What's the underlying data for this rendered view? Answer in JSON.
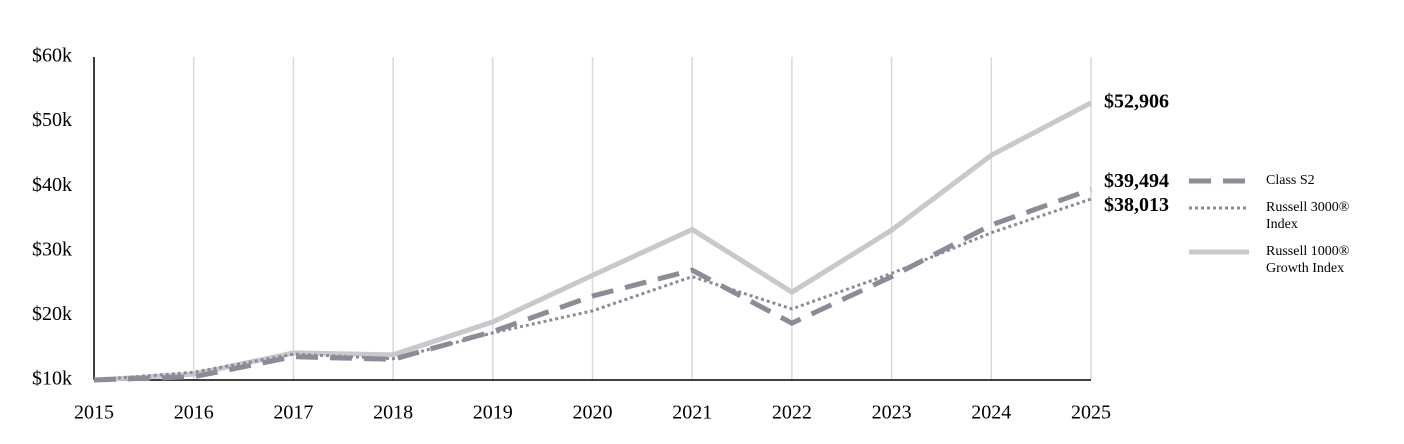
{
  "chart_data": {
    "type": "line",
    "x": [
      2015,
      2016,
      2017,
      2018,
      2019,
      2020,
      2021,
      2022,
      2023,
      2024,
      2025
    ],
    "xlim": [
      2015,
      2025
    ],
    "xticks": [
      2015,
      2016,
      2017,
      2018,
      2019,
      2020,
      2021,
      2022,
      2023,
      2024,
      2025
    ],
    "ylim": [
      10000,
      60000
    ],
    "yticks": [
      {
        "value": 10000,
        "label": "$10k"
      },
      {
        "value": 20000,
        "label": "$20k"
      },
      {
        "value": 30000,
        "label": "$30k"
      },
      {
        "value": 40000,
        "label": "$40k"
      },
      {
        "value": 50000,
        "label": "$50k"
      },
      {
        "value": 60000,
        "label": "$60k"
      }
    ],
    "grid": "x",
    "legend": "right",
    "series": [
      {
        "name": "Class S2",
        "color": "#8e8a98",
        "style": "dashed",
        "values": [
          10000,
          10500,
          13600,
          13200,
          17500,
          23000,
          27000,
          18800,
          26000,
          34000,
          39494
        ],
        "value_labels": [
          null,
          null,
          null,
          null,
          null,
          null,
          null,
          null,
          null,
          null,
          "$39,494"
        ]
      },
      {
        "name": "Russell 3000® Index",
        "color": "#8e8a98",
        "style": "dotted",
        "values": [
          10000,
          11200,
          14000,
          13300,
          17300,
          20700,
          26000,
          21000,
          26500,
          32800,
          38013
        ],
        "value_labels": [
          null,
          null,
          null,
          null,
          null,
          null,
          null,
          null,
          null,
          null,
          "$38,013"
        ]
      },
      {
        "name": "Russell 1000® Growth Index",
        "color": "#c9c8cd",
        "style": "solid",
        "values": [
          10000,
          10900,
          14200,
          13900,
          19000,
          26200,
          33300,
          23600,
          33200,
          44800,
          52906
        ],
        "value_labels": [
          null,
          null,
          null,
          null,
          null,
          null,
          null,
          null,
          null,
          null,
          "$52,906"
        ]
      }
    ]
  }
}
